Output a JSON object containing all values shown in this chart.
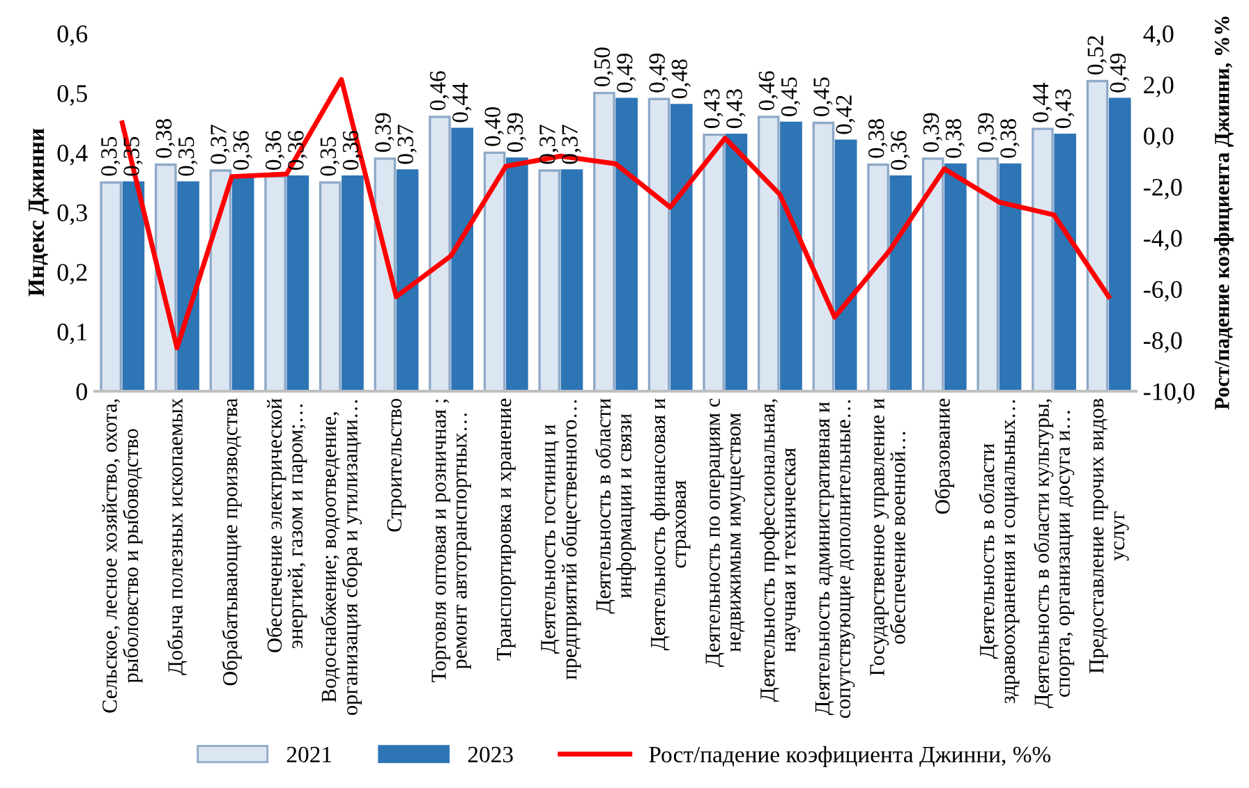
{
  "chart_data": {
    "type": "bar",
    "ylabel": "Индекс Джинни",
    "y2label": "Рост/падение коэфициента Джинни, %%",
    "categories": [
      "Сельское, лесное хозяйство, охота,\nрыболовство и рыбоводство",
      "Добыча полезных ископаемых",
      "Обрабатывающие производства",
      "Обеспечение электрической\nэнергией, газом и паром;…",
      "Водоснабжение; водоотведение,\nорганизация сбора и утилизации…",
      "Строительство",
      "Торговля оптовая и розничная ;\nремонт автотранспортных…",
      "Транспортировка и хранение",
      "Деятельность гостиниц и\nпредприятий общественного…",
      "Деятельность в области\nинформации и связи",
      "Деятельность финансовая и\nстраховая",
      "Деятельность по операциям с\nнедвижимым имуществом",
      "Деятельность профессиональная,\nнаучная и техническая",
      "Деятельность административная и\nсопутствующие дополнительные…",
      "Государственное управление и\nобеспечение военной…",
      "Образование",
      "Деятельность в области\nздравоохранения и социальных…",
      "Деятельность в области культуры,\nспорта, организации досуга и…",
      "Предоставление прочих видов\nуслуг"
    ],
    "series": [
      {
        "name": "2021",
        "color": "#dce6f2",
        "values": [
          0.35,
          0.38,
          0.37,
          0.36,
          0.35,
          0.39,
          0.46,
          0.4,
          0.37,
          0.5,
          0.49,
          0.43,
          0.46,
          0.45,
          0.38,
          0.39,
          0.39,
          0.44,
          0.52
        ],
        "value_labels": [
          "0,35",
          "0,38",
          "0,37",
          "0,36",
          "0,35",
          "0,39",
          "0,46",
          "0,40",
          "0,37",
          "0,50",
          "0,49",
          "0,43",
          "0,46",
          "0,45",
          "0,38",
          "0,39",
          "0,39",
          "0,44",
          "0,52"
        ]
      },
      {
        "name": "2023",
        "color": "#2e75b6",
        "values": [
          0.35,
          0.35,
          0.36,
          0.36,
          0.36,
          0.37,
          0.44,
          0.39,
          0.37,
          0.49,
          0.48,
          0.43,
          0.45,
          0.42,
          0.36,
          0.38,
          0.38,
          0.43,
          0.49
        ],
        "value_labels": [
          "0,35",
          "0,35",
          "0,36",
          "0,36",
          "0,36",
          "0,37",
          "0,44",
          "0,39",
          "0,37",
          "0,49",
          "0,48",
          "0,43",
          "0,45",
          "0,42",
          "0,36",
          "0,38",
          "0,38",
          "0,43",
          "0,49"
        ]
      },
      {
        "name": "Рост/падение коэфициента Джинни, %%",
        "type": "line",
        "axis": "y2",
        "color": "#ff0000",
        "values": [
          0.5,
          -8.3,
          -1.6,
          -1.5,
          2.2,
          -6.3,
          -4.7,
          -1.2,
          -0.8,
          -1.1,
          -2.8,
          -0.1,
          -2.3,
          -7.1,
          -4.5,
          -1.3,
          -2.6,
          -3.1,
          -6.3
        ]
      }
    ],
    "marker": "none",
    "line_style": "solid",
    "grid": false,
    "legend": "bottom",
    "ylim": [
      0,
      0.6
    ],
    "yticks": [
      0,
      {
        "value": 0.1,
        "label": "0,1"
      },
      {
        "value": 0.2,
        "label": "0,2"
      },
      {
        "value": 0.3,
        "label": "0,3"
      },
      {
        "value": 0.4,
        "label": "0,4"
      },
      {
        "value": 0.5,
        "label": "0,5"
      },
      {
        "value": 0.6,
        "label": "0,6"
      }
    ],
    "y2lim": [
      -10,
      4
    ],
    "y2ticks": [
      {
        "value": -10,
        "label": "-10,0"
      },
      {
        "value": -8,
        "label": "-8,0"
      },
      {
        "value": -6,
        "label": "-6,0"
      },
      {
        "value": -4,
        "label": "-4,0"
      },
      {
        "value": -2,
        "label": "-2,0"
      },
      {
        "value": 0,
        "label": "0,0"
      },
      {
        "value": 2,
        "label": "2,0"
      },
      {
        "value": 4,
        "label": "4,0"
      }
    ]
  }
}
